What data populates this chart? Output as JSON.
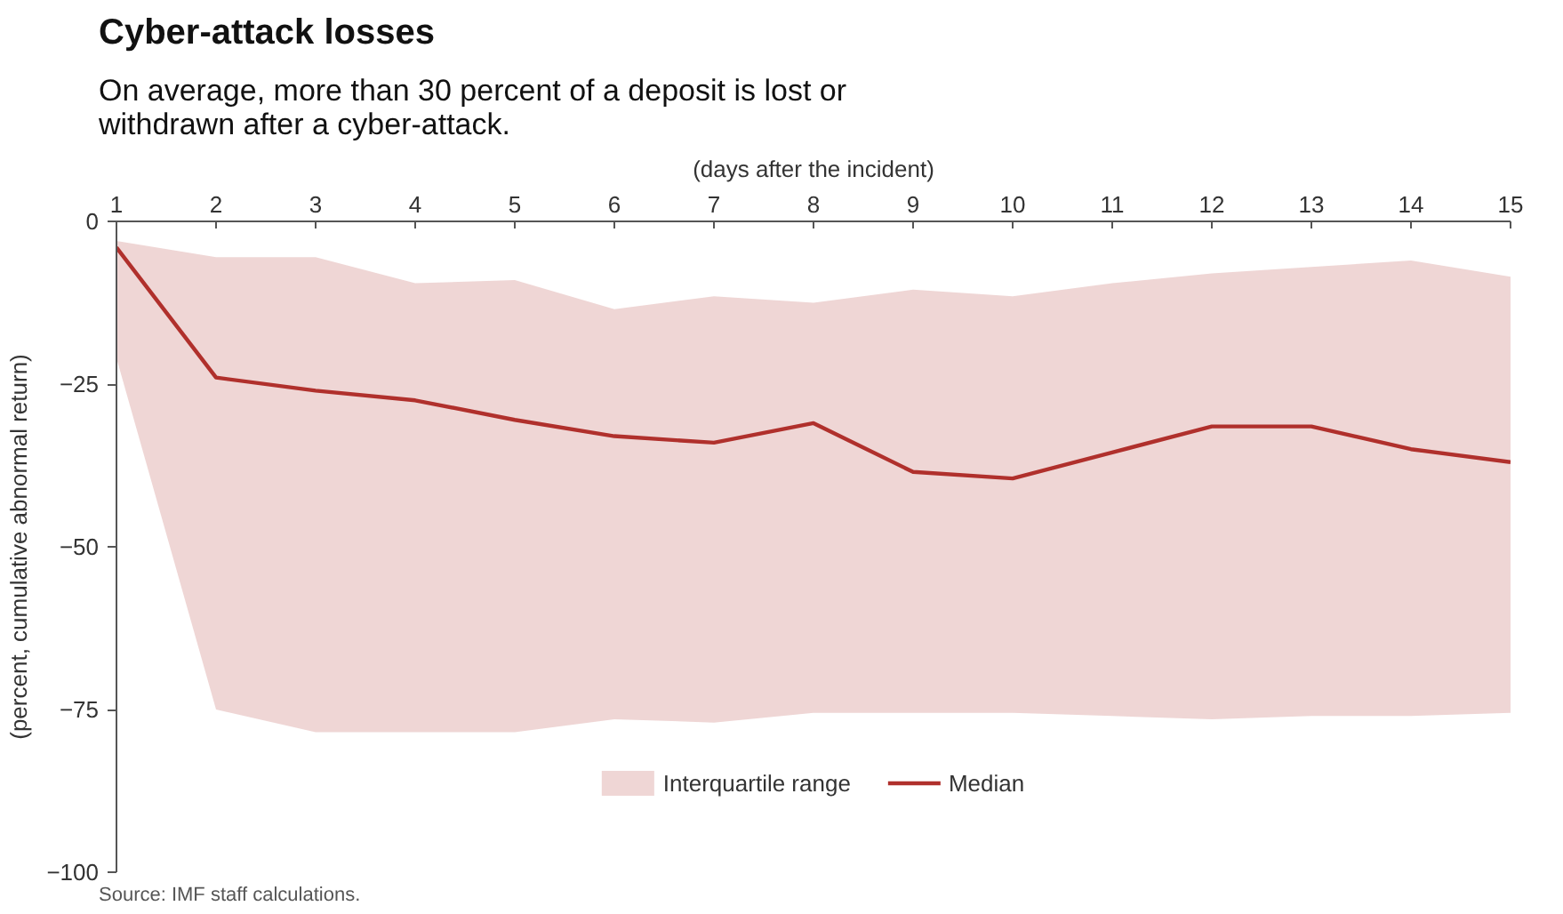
{
  "chart_data": {
    "type": "line",
    "title": "Cyber-attack losses",
    "subtitle": "On average, more than 30 percent of a deposit is lost or withdrawn after a cyber-attack.",
    "xlabel": "(days after the incident)",
    "ylabel": "(percent, cumulative abnormal return)",
    "x": [
      1,
      2,
      3,
      4,
      5,
      6,
      7,
      8,
      9,
      10,
      11,
      12,
      13,
      14,
      15
    ],
    "series": [
      {
        "name": "Median",
        "color": "#b0302c",
        "values": [
          -4,
          -24,
          -26,
          -27.5,
          -30.5,
          -33,
          -34,
          -31,
          -38.5,
          -39.5,
          -35.5,
          -31.5,
          -31.5,
          -35,
          -37
        ],
        "lower": [
          -21,
          -75,
          -78.5,
          -78.5,
          -78.5,
          -76.5,
          -77,
          -75.5,
          -75.5,
          -75.5,
          -76,
          -76.5,
          -76,
          -76,
          -75.5
        ],
        "upper": [
          -3,
          -5.5,
          -5.5,
          -9.5,
          -9,
          -13.5,
          -11.5,
          -12.5,
          -10.5,
          -11.5,
          -9.5,
          -8,
          -7,
          -6,
          -8.5
        ]
      }
    ],
    "xlim": [
      1,
      15
    ],
    "ylim": [
      -100,
      0
    ],
    "xticks": [
      1,
      2,
      3,
      4,
      5,
      6,
      7,
      8,
      9,
      10,
      11,
      12,
      13,
      14,
      15
    ],
    "yticks": [
      0,
      -25,
      -50,
      -75,
      -100
    ],
    "grid": false,
    "legend": "bottom",
    "marker": "none",
    "line_style": "solid",
    "annotations": [
      "Interquartile range",
      "Source: IMF staff calculations."
    ]
  }
}
